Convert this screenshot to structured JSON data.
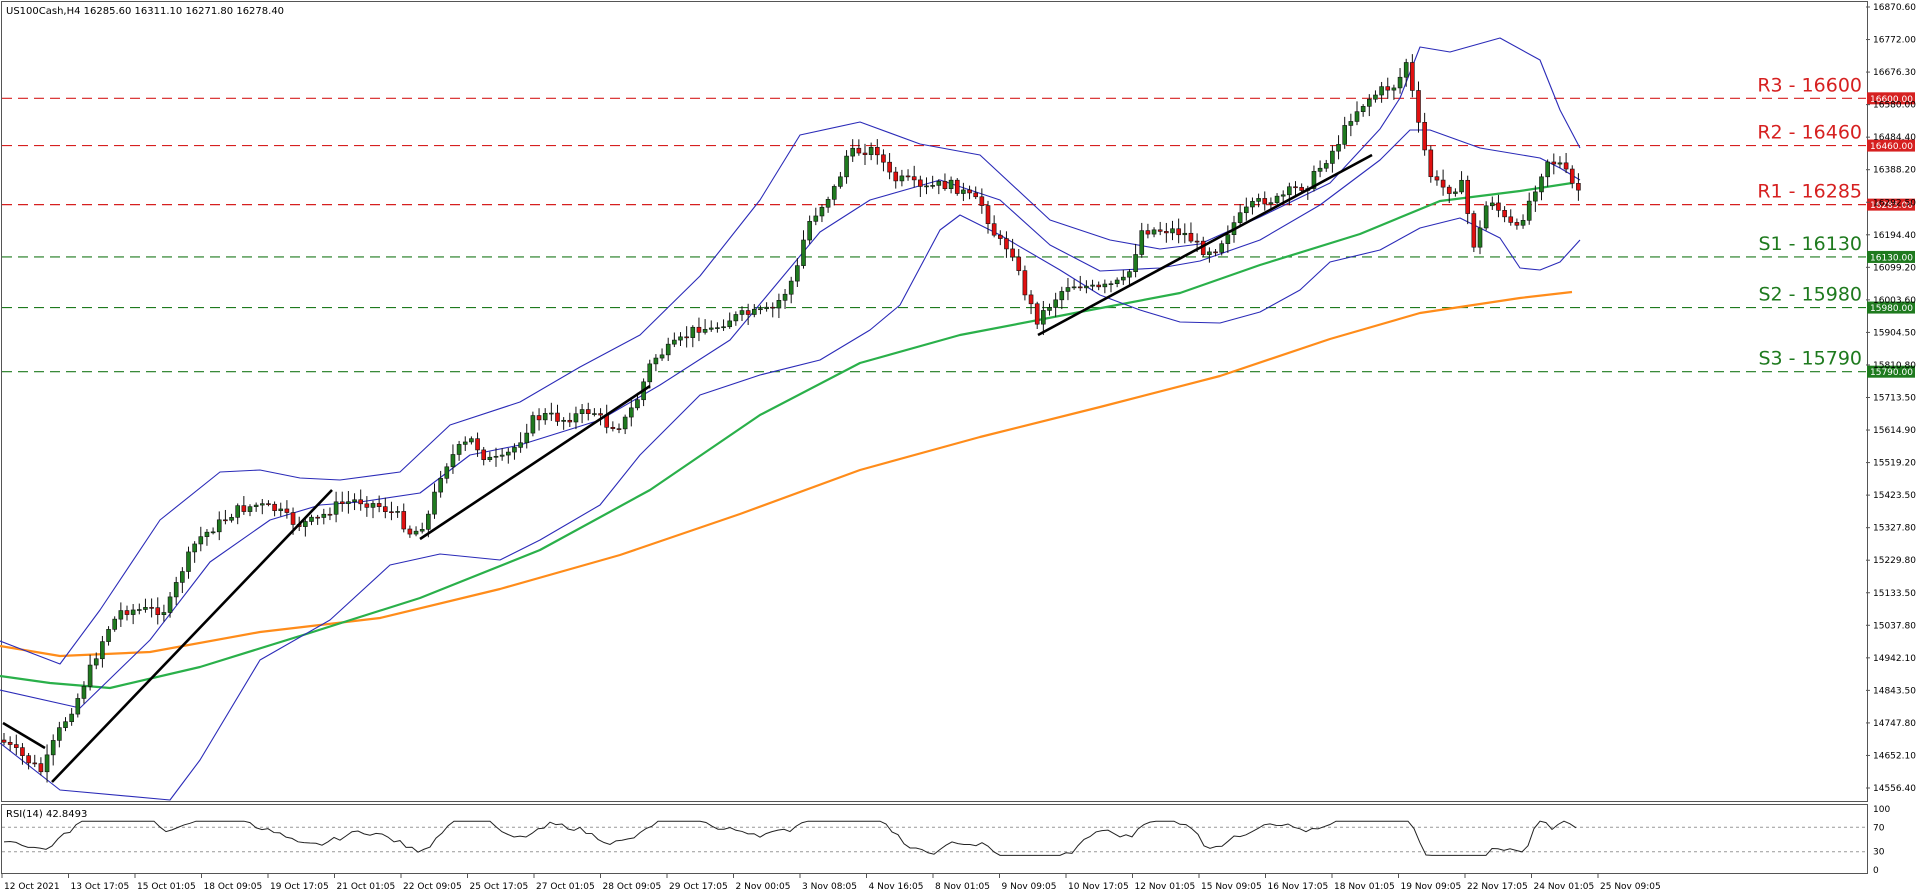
{
  "chart_data": {
    "type": "candlestick",
    "symbol_header": "US100Cash,H4  16285.60 16311.10 16271.80 16278.40",
    "rsi_header": "RSI(14) 42.8493",
    "y_ticks": [
      "16870.60",
      "16772.00",
      "16676.30",
      "16580.00",
      "16484.40",
      "16388.20",
      "16292.50",
      "16194.40",
      "16099.20",
      "16003.60",
      "15904.50",
      "15810.80",
      "15713.50",
      "15614.90",
      "15519.20",
      "15423.50",
      "15327.80",
      "15229.80",
      "15133.50",
      "15037.80",
      "14942.10",
      "14843.50",
      "14747.80",
      "14652.10",
      "14556.40"
    ],
    "ylim": [
      14556.4,
      16870.6
    ],
    "rsi_ticks": [
      "100",
      "70",
      "30",
      "0"
    ],
    "x_ticks": [
      "12 Oct 2021",
      "13 Oct 17:05",
      "15 Oct 01:05",
      "18 Oct 09:05",
      "19 Oct 17:05",
      "21 Oct 01:05",
      "22 Oct 09:05",
      "25 Oct 17:05",
      "27 Oct 01:05",
      "28 Oct 09:05",
      "29 Oct 17:05",
      "2 Nov 00:05",
      "3 Nov 08:05",
      "4 Nov 16:05",
      "8 Nov 01:05",
      "9 Nov 09:05",
      "10 Nov 17:05",
      "12 Nov 01:05",
      "15 Nov 09:05",
      "16 Nov 17:05",
      "18 Nov 01:05",
      "19 Nov 09:05",
      "22 Nov 17:05",
      "24 Nov 01:05",
      "25 Nov 09:05"
    ],
    "levels": [
      {
        "label": "R3 - 16600",
        "value": 16600,
        "tag": "16600.00",
        "color": "#d62020"
      },
      {
        "label": "R2 - 16460",
        "value": 16460,
        "tag": "16460.00",
        "color": "#d62020"
      },
      {
        "label": "R1 - 16285",
        "value": 16285,
        "tag": "16285.00",
        "color": "#d62020"
      },
      {
        "label": "S1 - 16130",
        "value": 16130,
        "tag": "16130.00",
        "color": "#1e7a1e"
      },
      {
        "label": "S2 - 15980",
        "value": 15980,
        "tag": "15980.00",
        "color": "#1e7a1e"
      },
      {
        "label": "S3 - 15790",
        "value": 15790,
        "tag": "15790.00",
        "color": "#1e7a1e"
      }
    ],
    "colors": {
      "bull": "#1f7a1f",
      "bear": "#e01010",
      "bands": "#2b2bb8",
      "ma_green": "#2ab04a",
      "ma_orange": "#ff8c1a",
      "trend": "#000000"
    }
  }
}
